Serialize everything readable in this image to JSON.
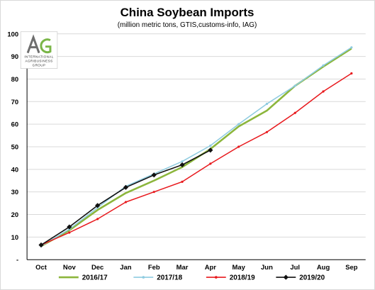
{
  "chart_data": {
    "type": "line",
    "title": "China Soybean Imports",
    "subtitle": "(million metric tons, GTIS,customs-info, IAG)",
    "categories": [
      "Oct",
      "Nov",
      "Dec",
      "Jan",
      "Feb",
      "Mar",
      "Apr",
      "May",
      "Jun",
      "Jul",
      "Aug",
      "Sep"
    ],
    "yticks": [
      "-",
      "10",
      "20",
      "30",
      "40",
      "50",
      "60",
      "70",
      "80",
      "90",
      "100"
    ],
    "ylim": [
      0,
      100
    ],
    "grid": true,
    "legend_position": "bottom",
    "series": [
      {
        "name": "2016/17",
        "color": "#8cb63c",
        "marker": "none",
        "values": [
          6,
          13,
          22,
          29.5,
          35,
          41,
          49,
          59,
          66,
          77,
          85.5,
          93.5
        ]
      },
      {
        "name": "2017/18",
        "color": "#8ecbe0",
        "marker": "dot",
        "values": [
          6,
          13.5,
          23,
          32.5,
          38,
          43.5,
          50.5,
          60,
          69,
          77,
          86,
          94
        ]
      },
      {
        "name": "2018/19",
        "color": "#e8191d",
        "marker": "dot",
        "values": [
          6.5,
          12,
          18,
          25.5,
          30,
          34.5,
          42.5,
          50,
          56.5,
          65,
          74.5,
          82.5
        ]
      },
      {
        "name": "2019/20",
        "color": "#111111",
        "marker": "diamond",
        "values": [
          6.5,
          14.5,
          24,
          32,
          37.5,
          42,
          48.5,
          null,
          null,
          null,
          null,
          null
        ]
      }
    ]
  },
  "logo": {
    "monogram": "AG",
    "text_lines": [
      "INTERNATIONAL",
      "AGRIBUSINESS",
      "GROUP"
    ]
  }
}
